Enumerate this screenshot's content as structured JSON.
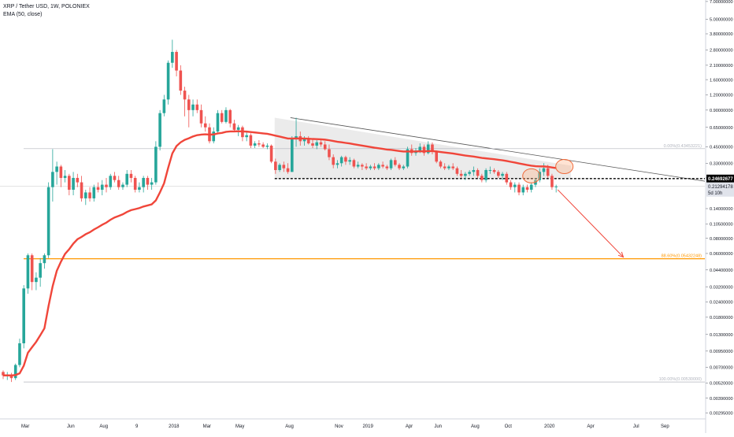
{
  "chart_data": {
    "type": "candlestick",
    "title": "XRP / Tether USD, 1W, POLONIEX",
    "indicator_label": "EMA (50, close)",
    "scale": "log",
    "ylim": [
      0.0028,
      7.2
    ],
    "y_ticks": [
      "7.00000000",
      "5.00000000",
      "3.80000000",
      "2.80000000",
      "2.10000000",
      "1.60000000",
      "1.20000000",
      "0.90000000",
      "0.65000000",
      "0.45000000",
      "0.33000000",
      "0.25000000",
      "0.14000000",
      "0.10500000",
      "0.08000000",
      "0.06000000",
      "0.04400000",
      "0.03200000",
      "0.02400000",
      "0.01800000",
      "0.01300000",
      "0.00950000",
      "0.00700000",
      "0.00520000",
      "0.00390000",
      "0.00295000"
    ],
    "x_ticks": [
      "Mar",
      "Jun",
      "Aug",
      "9",
      "2018",
      "Mar",
      "May",
      "Aug",
      "Nov",
      "2019",
      "Apr",
      "Jun",
      "Aug",
      "Oct",
      "2020",
      "Apr",
      "Jul",
      "Sep"
    ],
    "price_labels": {
      "current": "0.24692677",
      "last": "0.21294178",
      "countdown": "5d 10h"
    },
    "fib_levels": [
      {
        "text": "0.00%(0.43453221)",
        "value": 0.4345
      },
      {
        "text": "88.60%(0.05432248)",
        "value": 0.0543
      },
      {
        "text": "100.00%(0.00530000)",
        "value": 0.0053
      }
    ],
    "support_level": 0.2469,
    "colors": {
      "up": "#26a69a",
      "down": "#ef5350",
      "ema": "#f0463a",
      "fib": "#ff9800",
      "grid": "#b2b5be",
      "dashed": "#000000",
      "arrow": "#f0463a",
      "triangle_fill": "#d7d7d7"
    },
    "candles": [
      {
        "o": 0.0064,
        "h": 0.0066,
        "l": 0.0056,
        "c": 0.006
      },
      {
        "o": 0.006,
        "h": 0.0064,
        "l": 0.0055,
        "c": 0.0061
      },
      {
        "o": 0.0061,
        "h": 0.0063,
        "l": 0.0053,
        "c": 0.0057
      },
      {
        "o": 0.0057,
        "h": 0.0075,
        "l": 0.0055,
        "c": 0.0073
      },
      {
        "o": 0.0073,
        "h": 0.012,
        "l": 0.007,
        "c": 0.011
      },
      {
        "o": 0.011,
        "h": 0.033,
        "l": 0.01,
        "c": 0.031
      },
      {
        "o": 0.031,
        "h": 0.06,
        "l": 0.028,
        "c": 0.058
      },
      {
        "o": 0.058,
        "h": 0.06,
        "l": 0.03,
        "c": 0.035
      },
      {
        "o": 0.035,
        "h": 0.042,
        "l": 0.03,
        "c": 0.038
      },
      {
        "o": 0.038,
        "h": 0.055,
        "l": 0.032,
        "c": 0.05
      },
      {
        "o": 0.05,
        "h": 0.06,
        "l": 0.045,
        "c": 0.058
      },
      {
        "o": 0.058,
        "h": 0.23,
        "l": 0.055,
        "c": 0.21
      },
      {
        "o": 0.21,
        "h": 0.43,
        "l": 0.16,
        "c": 0.28
      },
      {
        "o": 0.28,
        "h": 0.34,
        "l": 0.22,
        "c": 0.31
      },
      {
        "o": 0.31,
        "h": 0.32,
        "l": 0.21,
        "c": 0.25
      },
      {
        "o": 0.25,
        "h": 0.29,
        "l": 0.23,
        "c": 0.26
      },
      {
        "o": 0.26,
        "h": 0.27,
        "l": 0.18,
        "c": 0.2
      },
      {
        "o": 0.2,
        "h": 0.28,
        "l": 0.18,
        "c": 0.25
      },
      {
        "o": 0.25,
        "h": 0.27,
        "l": 0.21,
        "c": 0.23
      },
      {
        "o": 0.23,
        "h": 0.26,
        "l": 0.16,
        "c": 0.17
      },
      {
        "o": 0.17,
        "h": 0.2,
        "l": 0.15,
        "c": 0.19
      },
      {
        "o": 0.19,
        "h": 0.21,
        "l": 0.16,
        "c": 0.17
      },
      {
        "o": 0.17,
        "h": 0.22,
        "l": 0.16,
        "c": 0.21
      },
      {
        "o": 0.21,
        "h": 0.23,
        "l": 0.19,
        "c": 0.2
      },
      {
        "o": 0.2,
        "h": 0.24,
        "l": 0.18,
        "c": 0.22
      },
      {
        "o": 0.22,
        "h": 0.25,
        "l": 0.19,
        "c": 0.21
      },
      {
        "o": 0.21,
        "h": 0.27,
        "l": 0.2,
        "c": 0.26
      },
      {
        "o": 0.26,
        "h": 0.28,
        "l": 0.23,
        "c": 0.24
      },
      {
        "o": 0.24,
        "h": 0.26,
        "l": 0.2,
        "c": 0.21
      },
      {
        "o": 0.21,
        "h": 0.23,
        "l": 0.2,
        "c": 0.22
      },
      {
        "o": 0.22,
        "h": 0.29,
        "l": 0.21,
        "c": 0.27
      },
      {
        "o": 0.27,
        "h": 0.29,
        "l": 0.23,
        "c": 0.25
      },
      {
        "o": 0.25,
        "h": 0.26,
        "l": 0.19,
        "c": 0.2
      },
      {
        "o": 0.2,
        "h": 0.23,
        "l": 0.19,
        "c": 0.21
      },
      {
        "o": 0.21,
        "h": 0.26,
        "l": 0.19,
        "c": 0.25
      },
      {
        "o": 0.25,
        "h": 0.26,
        "l": 0.2,
        "c": 0.22
      },
      {
        "o": 0.22,
        "h": 0.25,
        "l": 0.2,
        "c": 0.23
      },
      {
        "o": 0.23,
        "h": 0.5,
        "l": 0.22,
        "c": 0.45
      },
      {
        "o": 0.45,
        "h": 0.9,
        "l": 0.42,
        "c": 0.85
      },
      {
        "o": 0.85,
        "h": 1.2,
        "l": 0.8,
        "c": 1.1
      },
      {
        "o": 1.1,
        "h": 2.3,
        "l": 1.0,
        "c": 2.2
      },
      {
        "o": 2.2,
        "h": 3.4,
        "l": 2.0,
        "c": 2.7
      },
      {
        "o": 2.7,
        "h": 2.8,
        "l": 1.7,
        "c": 1.9
      },
      {
        "o": 1.9,
        "h": 2.1,
        "l": 1.2,
        "c": 1.3
      },
      {
        "o": 1.3,
        "h": 1.4,
        "l": 0.8,
        "c": 1.1
      },
      {
        "o": 1.1,
        "h": 1.2,
        "l": 0.65,
        "c": 0.9
      },
      {
        "o": 0.9,
        "h": 1.1,
        "l": 0.8,
        "c": 1.0
      },
      {
        "o": 1.0,
        "h": 1.1,
        "l": 0.85,
        "c": 0.9
      },
      {
        "o": 0.9,
        "h": 1.0,
        "l": 0.65,
        "c": 0.7
      },
      {
        "o": 0.7,
        "h": 0.8,
        "l": 0.6,
        "c": 0.65
      },
      {
        "o": 0.65,
        "h": 0.7,
        "l": 0.48,
        "c": 0.5
      },
      {
        "o": 0.5,
        "h": 0.65,
        "l": 0.48,
        "c": 0.6
      },
      {
        "o": 0.6,
        "h": 0.9,
        "l": 0.58,
        "c": 0.85
      },
      {
        "o": 0.85,
        "h": 0.9,
        "l": 0.7,
        "c": 0.72
      },
      {
        "o": 0.72,
        "h": 0.95,
        "l": 0.7,
        "c": 0.9
      },
      {
        "o": 0.9,
        "h": 0.92,
        "l": 0.65,
        "c": 0.7
      },
      {
        "o": 0.7,
        "h": 0.75,
        "l": 0.6,
        "c": 0.62
      },
      {
        "o": 0.62,
        "h": 0.68,
        "l": 0.55,
        "c": 0.65
      },
      {
        "o": 0.65,
        "h": 0.67,
        "l": 0.5,
        "c": 0.54
      },
      {
        "o": 0.54,
        "h": 0.6,
        "l": 0.5,
        "c": 0.56
      },
      {
        "o": 0.56,
        "h": 0.58,
        "l": 0.44,
        "c": 0.46
      },
      {
        "o": 0.46,
        "h": 0.5,
        "l": 0.44,
        "c": 0.48
      },
      {
        "o": 0.48,
        "h": 0.51,
        "l": 0.45,
        "c": 0.47
      },
      {
        "o": 0.47,
        "h": 0.49,
        "l": 0.44,
        "c": 0.45
      },
      {
        "o": 0.45,
        "h": 0.48,
        "l": 0.43,
        "c": 0.46
      },
      {
        "o": 0.46,
        "h": 0.47,
        "l": 0.33,
        "c": 0.34
      },
      {
        "o": 0.34,
        "h": 0.36,
        "l": 0.27,
        "c": 0.29
      },
      {
        "o": 0.29,
        "h": 0.33,
        "l": 0.28,
        "c": 0.32
      },
      {
        "o": 0.32,
        "h": 0.34,
        "l": 0.28,
        "c": 0.3
      },
      {
        "o": 0.3,
        "h": 0.33,
        "l": 0.27,
        "c": 0.28
      },
      {
        "o": 0.28,
        "h": 0.55,
        "l": 0.28,
        "c": 0.53
      },
      {
        "o": 0.53,
        "h": 0.78,
        "l": 0.45,
        "c": 0.55
      },
      {
        "o": 0.55,
        "h": 0.6,
        "l": 0.46,
        "c": 0.5
      },
      {
        "o": 0.5,
        "h": 0.55,
        "l": 0.46,
        "c": 0.52
      },
      {
        "o": 0.52,
        "h": 0.55,
        "l": 0.47,
        "c": 0.48
      },
      {
        "o": 0.48,
        "h": 0.52,
        "l": 0.44,
        "c": 0.46
      },
      {
        "o": 0.46,
        "h": 0.51,
        "l": 0.43,
        "c": 0.49
      },
      {
        "o": 0.49,
        "h": 0.52,
        "l": 0.45,
        "c": 0.47
      },
      {
        "o": 0.47,
        "h": 0.5,
        "l": 0.42,
        "c": 0.43
      },
      {
        "o": 0.43,
        "h": 0.47,
        "l": 0.35,
        "c": 0.37
      },
      {
        "o": 0.37,
        "h": 0.39,
        "l": 0.3,
        "c": 0.32
      },
      {
        "o": 0.32,
        "h": 0.35,
        "l": 0.3,
        "c": 0.33
      },
      {
        "o": 0.33,
        "h": 0.38,
        "l": 0.31,
        "c": 0.37
      },
      {
        "o": 0.37,
        "h": 0.38,
        "l": 0.32,
        "c": 0.34
      },
      {
        "o": 0.34,
        "h": 0.37,
        "l": 0.32,
        "c": 0.35
      },
      {
        "o": 0.35,
        "h": 0.36,
        "l": 0.3,
        "c": 0.31
      },
      {
        "o": 0.31,
        "h": 0.34,
        "l": 0.3,
        "c": 0.32
      },
      {
        "o": 0.32,
        "h": 0.33,
        "l": 0.29,
        "c": 0.31
      },
      {
        "o": 0.31,
        "h": 0.33,
        "l": 0.29,
        "c": 0.3
      },
      {
        "o": 0.3,
        "h": 0.32,
        "l": 0.29,
        "c": 0.31
      },
      {
        "o": 0.31,
        "h": 0.33,
        "l": 0.29,
        "c": 0.3
      },
      {
        "o": 0.3,
        "h": 0.33,
        "l": 0.29,
        "c": 0.32
      },
      {
        "o": 0.32,
        "h": 0.34,
        "l": 0.3,
        "c": 0.31
      },
      {
        "o": 0.31,
        "h": 0.32,
        "l": 0.29,
        "c": 0.3
      },
      {
        "o": 0.3,
        "h": 0.36,
        "l": 0.29,
        "c": 0.35
      },
      {
        "o": 0.35,
        "h": 0.37,
        "l": 0.31,
        "c": 0.32
      },
      {
        "o": 0.32,
        "h": 0.33,
        "l": 0.29,
        "c": 0.3
      },
      {
        "o": 0.3,
        "h": 0.32,
        "l": 0.29,
        "c": 0.31
      },
      {
        "o": 0.31,
        "h": 0.45,
        "l": 0.3,
        "c": 0.43
      },
      {
        "o": 0.43,
        "h": 0.47,
        "l": 0.38,
        "c": 0.4
      },
      {
        "o": 0.4,
        "h": 0.44,
        "l": 0.38,
        "c": 0.42
      },
      {
        "o": 0.42,
        "h": 0.48,
        "l": 0.4,
        "c": 0.45
      },
      {
        "o": 0.45,
        "h": 0.47,
        "l": 0.38,
        "c": 0.4
      },
      {
        "o": 0.4,
        "h": 0.5,
        "l": 0.39,
        "c": 0.47
      },
      {
        "o": 0.47,
        "h": 0.49,
        "l": 0.39,
        "c": 0.41
      },
      {
        "o": 0.41,
        "h": 0.42,
        "l": 0.33,
        "c": 0.34
      },
      {
        "o": 0.34,
        "h": 0.35,
        "l": 0.3,
        "c": 0.31
      },
      {
        "o": 0.31,
        "h": 0.33,
        "l": 0.29,
        "c": 0.3
      },
      {
        "o": 0.3,
        "h": 0.32,
        "l": 0.29,
        "c": 0.31
      },
      {
        "o": 0.31,
        "h": 0.33,
        "l": 0.29,
        "c": 0.3
      },
      {
        "o": 0.3,
        "h": 0.31,
        "l": 0.26,
        "c": 0.27
      },
      {
        "o": 0.27,
        "h": 0.29,
        "l": 0.25,
        "c": 0.26
      },
      {
        "o": 0.26,
        "h": 0.28,
        "l": 0.24,
        "c": 0.27
      },
      {
        "o": 0.27,
        "h": 0.29,
        "l": 0.26,
        "c": 0.28
      },
      {
        "o": 0.28,
        "h": 0.31,
        "l": 0.26,
        "c": 0.29
      },
      {
        "o": 0.29,
        "h": 0.3,
        "l": 0.25,
        "c": 0.26
      },
      {
        "o": 0.26,
        "h": 0.27,
        "l": 0.23,
        "c": 0.24
      },
      {
        "o": 0.24,
        "h": 0.3,
        "l": 0.23,
        "c": 0.29
      },
      {
        "o": 0.29,
        "h": 0.31,
        "l": 0.27,
        "c": 0.29
      },
      {
        "o": 0.29,
        "h": 0.3,
        "l": 0.27,
        "c": 0.28
      },
      {
        "o": 0.28,
        "h": 0.29,
        "l": 0.25,
        "c": 0.26
      },
      {
        "o": 0.26,
        "h": 0.28,
        "l": 0.24,
        "c": 0.27
      },
      {
        "o": 0.27,
        "h": 0.28,
        "l": 0.22,
        "c": 0.23
      },
      {
        "o": 0.23,
        "h": 0.24,
        "l": 0.2,
        "c": 0.21
      },
      {
        "o": 0.21,
        "h": 0.23,
        "l": 0.19,
        "c": 0.22
      },
      {
        "o": 0.22,
        "h": 0.23,
        "l": 0.18,
        "c": 0.19
      },
      {
        "o": 0.19,
        "h": 0.22,
        "l": 0.18,
        "c": 0.21
      },
      {
        "o": 0.21,
        "h": 0.22,
        "l": 0.19,
        "c": 0.2
      },
      {
        "o": 0.2,
        "h": 0.23,
        "l": 0.19,
        "c": 0.22
      },
      {
        "o": 0.22,
        "h": 0.25,
        "l": 0.21,
        "c": 0.24
      },
      {
        "o": 0.24,
        "h": 0.3,
        "l": 0.23,
        "c": 0.28
      },
      {
        "o": 0.28,
        "h": 0.33,
        "l": 0.26,
        "c": 0.3
      },
      {
        "o": 0.3,
        "h": 0.32,
        "l": 0.25,
        "c": 0.26
      },
      {
        "o": 0.26,
        "h": 0.27,
        "l": 0.2,
        "c": 0.21
      },
      {
        "o": 0.21,
        "h": 0.22,
        "l": 0.19,
        "c": 0.2129
      }
    ],
    "ema_last": 0.289,
    "triangle_top": [
      {
        "index": 70,
        "value": 0.78
      },
      {
        "index": 137,
        "value": 0.315
      }
    ],
    "trendline_end": {
      "index": 158,
      "value": 0.235
    },
    "forecast_arrow_end": {
      "index": 148,
      "value": 0.056
    },
    "circled_regions": [
      {
        "index": 128,
        "value": 0.26
      },
      {
        "index": 136,
        "value": 0.31
      }
    ]
  }
}
